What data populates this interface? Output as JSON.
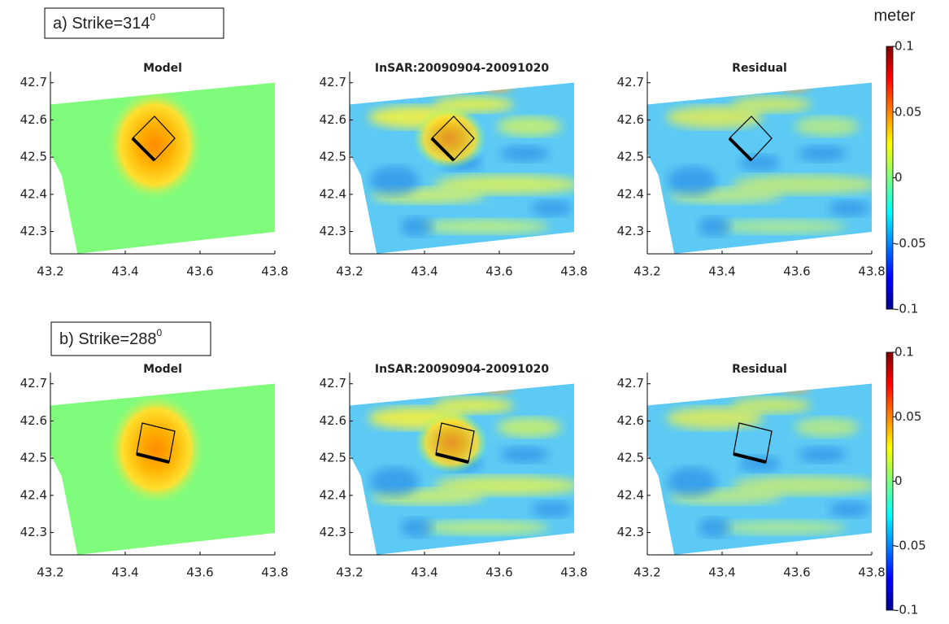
{
  "chart_data": [
    {
      "type": "map",
      "title": "Model",
      "xlim": [
        43.2,
        43.8
      ],
      "xticks": [
        43.2,
        43.4,
        43.6,
        43.8
      ],
      "ylim": [
        42.24,
        42.73
      ],
      "yticks": [
        42.3,
        42.4,
        42.5,
        42.6,
        42.7
      ]
    },
    {
      "type": "map",
      "title": "InSAR:20090904-20091020",
      "xlim": [
        43.2,
        43.8
      ],
      "xticks": [
        43.2,
        43.4,
        43.6,
        43.8
      ],
      "ylim": [
        42.24,
        42.73
      ],
      "yticks": [
        42.3,
        42.4,
        42.5,
        42.6,
        42.7
      ]
    },
    {
      "type": "map",
      "title": "Residual",
      "xlim": [
        43.2,
        43.8
      ],
      "xticks": [
        43.2,
        43.4,
        43.6,
        43.8
      ],
      "ylim": [
        42.24,
        42.73
      ],
      "yticks": [
        42.3,
        42.4,
        42.5,
        42.6,
        42.7
      ]
    },
    {
      "type": "map",
      "title": "Model",
      "xlim": [
        43.2,
        43.8
      ],
      "xticks": [
        43.2,
        43.4,
        43.6,
        43.8
      ],
      "ylim": [
        42.24,
        42.73
      ],
      "yticks": [
        42.3,
        42.4,
        42.5,
        42.6,
        42.7
      ]
    },
    {
      "type": "map",
      "title": "InSAR:20090904-20091020",
      "xlim": [
        43.2,
        43.8
      ],
      "xticks": [
        43.2,
        43.4,
        43.6,
        43.8
      ],
      "ylim": [
        42.24,
        42.73
      ],
      "yticks": [
        42.3,
        42.4,
        42.5,
        42.6,
        42.7
      ]
    },
    {
      "type": "map",
      "title": "Residual",
      "xlim": [
        43.2,
        43.8
      ],
      "xticks": [
        43.2,
        43.4,
        43.6,
        43.8
      ],
      "ylim": [
        42.24,
        42.73
      ],
      "yticks": [
        42.3,
        42.4,
        42.5,
        42.6,
        42.7
      ]
    }
  ],
  "panel_labels": [
    {
      "text": "a) Strike=314",
      "superscript": "0"
    },
    {
      "text": "b) Strike=288",
      "superscript": "0"
    }
  ],
  "colorbars": [
    {
      "label": "meter",
      "clim": [
        -0.1,
        0.1
      ],
      "ticks": [
        0.1,
        0.05,
        0,
        -0.05,
        -0.1
      ]
    },
    {
      "clim": [
        -0.1,
        0.1
      ],
      "ticks": [
        0.1,
        0.05,
        0,
        -0.05,
        -0.1
      ]
    }
  ]
}
